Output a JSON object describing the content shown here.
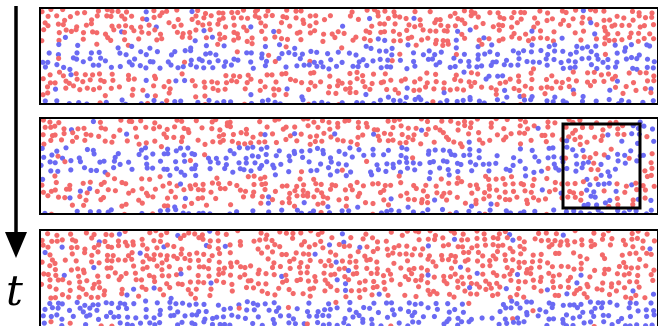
{
  "time_axis": {
    "label": "t",
    "arrow_color": "#000000"
  },
  "particle_colors": {
    "red": "#f36a6a",
    "blue": "#6a6af3"
  },
  "frames": [
    {
      "name": "frame-1",
      "stripes": [
        {
          "color": "red",
          "y_from": 0.0,
          "y_to": 0.38
        },
        {
          "color": "blue",
          "y_from": 0.38,
          "y_to": 0.66
        },
        {
          "color": "red",
          "y_from": 0.66,
          "y_to": 0.92
        },
        {
          "color": "blue",
          "y_from": 0.92,
          "y_to": 1.0
        }
      ],
      "highlight": null
    },
    {
      "name": "frame-2",
      "stripes": [
        {
          "color": "red",
          "y_from": 0.0,
          "y_to": 0.3
        },
        {
          "color": "blue",
          "y_from": 0.3,
          "y_to": 0.6
        },
        {
          "color": "red",
          "y_from": 0.6,
          "y_to": 0.92
        },
        {
          "color": "blue",
          "y_from": 0.92,
          "y_to": 1.0
        }
      ],
      "highlight": {
        "x_from": 0.88,
        "x_to": 1.0,
        "y_from": 0.04,
        "y_to": 0.95
      }
    },
    {
      "name": "frame-3",
      "stripes": [
        {
          "color": "red",
          "y_from": 0.0,
          "y_to": 0.72
        },
        {
          "color": "blue",
          "y_from": 0.72,
          "y_to": 1.0
        }
      ],
      "highlight": null
    }
  ]
}
